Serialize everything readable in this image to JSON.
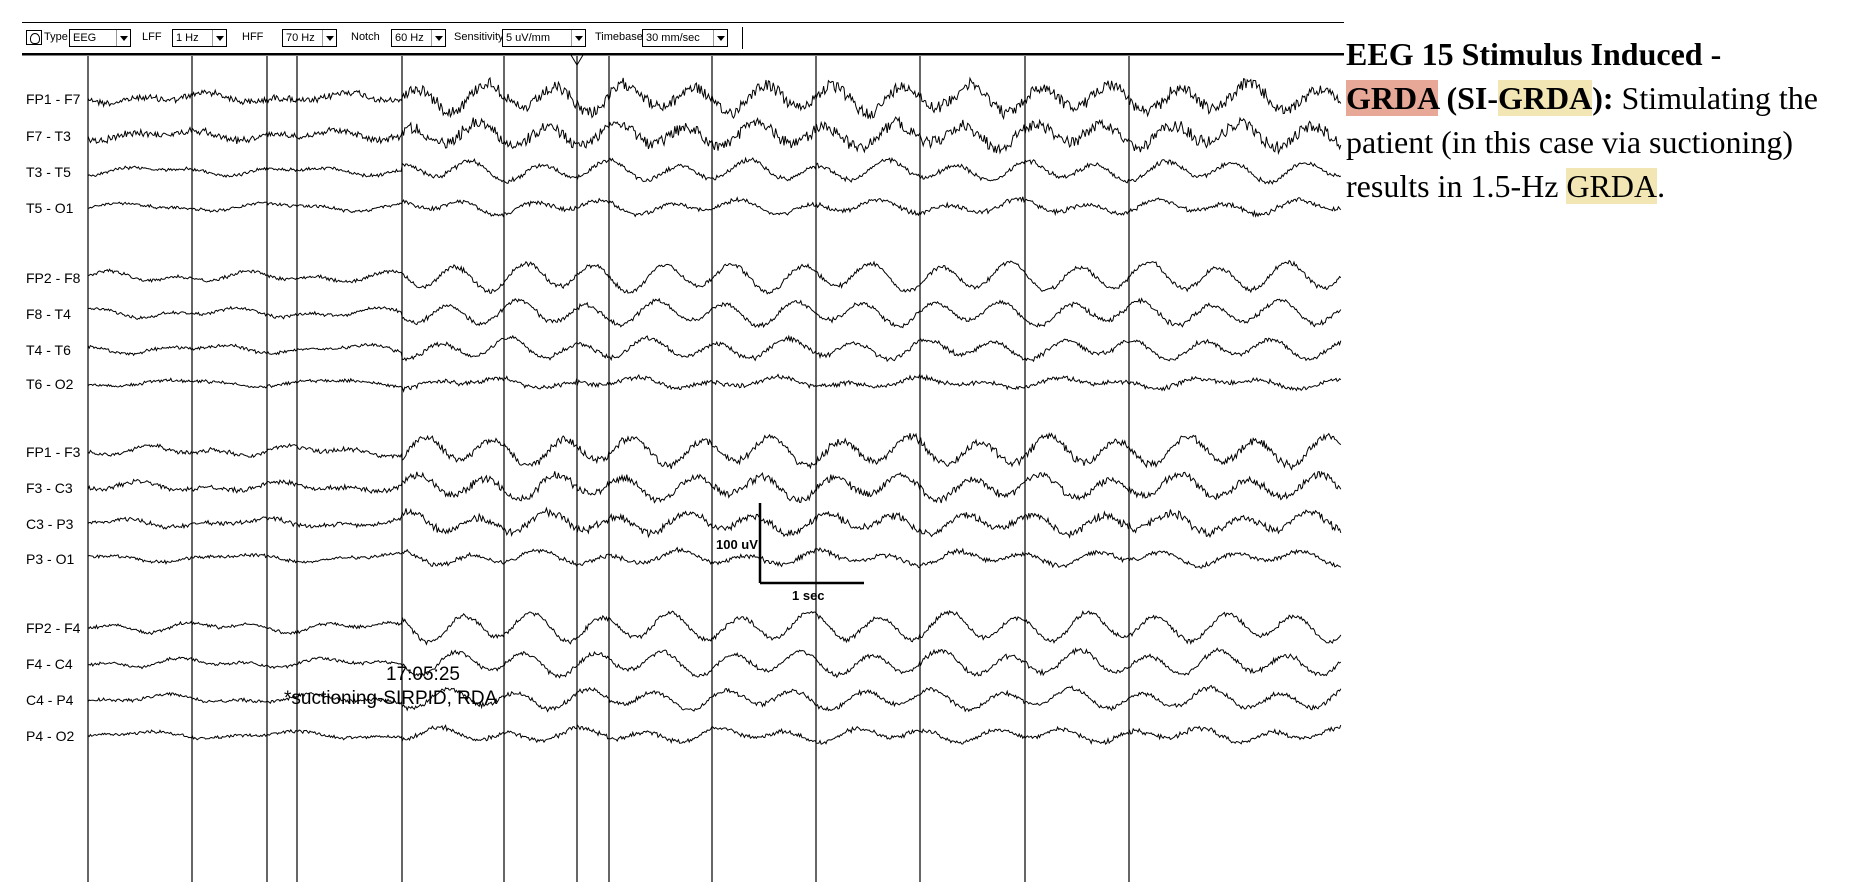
{
  "toolbar": {
    "type_label": "Type",
    "type_value": "EEG",
    "lff_label": "LFF",
    "lff_value": "1 Hz",
    "hff_label": "HFF",
    "hff_value": "70 Hz",
    "notch_label": "Notch",
    "notch_value": "60 Hz",
    "sensitivity_label": "Sensitivity",
    "sensitivity_value": "5 uV/mm",
    "timebase_label": "Timebase",
    "timebase_value": "30 mm/sec"
  },
  "chart_data": {
    "type": "eeg",
    "channels": [
      "FP1 - F7",
      "F7 - T3",
      "T3 - T5",
      "T5 - O1",
      "FP2 - F8",
      "F8 - T4",
      "T4 - T6",
      "T6 - O2",
      "FP1 - F3",
      "F3 - C3",
      "C3 - P3",
      "P3 - O1",
      "FP2 - F4",
      "F4 - C4",
      "C4 - P4",
      "P4 - O2"
    ],
    "channel_groups": 4,
    "sensitivity_uV_per_mm": 5,
    "timebase_mm_per_sec": 30,
    "pattern": "1.5-Hz generalized rhythmic delta activity, stimulus induced",
    "rhythm_frequency_hz": 1.5,
    "scale_bar": {
      "vertical_label": "100 uV",
      "horizontal_label": "1 sec"
    },
    "annotation": {
      "time": "17:05:25",
      "text": "*suctioning-SIRPID, RDA"
    },
    "grid": true
  },
  "caption": {
    "title_prefix": "EEG 15 Stimulus Induced -",
    "term1": "GRDA",
    "paren_open": " (SI-",
    "term2": "GRDA",
    "paren_close": "):",
    "body": "  Stimulating the patient (in this case via suctioning) results in 1.5-Hz ",
    "term3": "GRDA",
    "end": ".",
    "highlight_colors": {
      "red": "#e8a898",
      "yellow": "#f2e7b4"
    }
  }
}
